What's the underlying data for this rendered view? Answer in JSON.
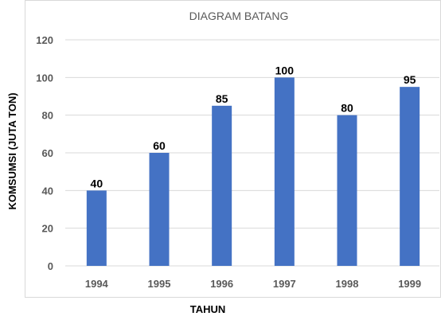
{
  "chart_data": {
    "type": "bar",
    "title": "DIAGRAM BATANG",
    "xlabel": "TAHUN",
    "ylabel": "KOMSUMSI (JUTA TON)",
    "categories": [
      "1994",
      "1995",
      "1996",
      "1997",
      "1998",
      "1999"
    ],
    "values": [
      40,
      60,
      85,
      100,
      80,
      95
    ],
    "ylim": [
      0,
      120
    ],
    "yticks": [
      0,
      20,
      40,
      60,
      80,
      100,
      120
    ],
    "grid": true,
    "bar_color": "#4472C4"
  }
}
